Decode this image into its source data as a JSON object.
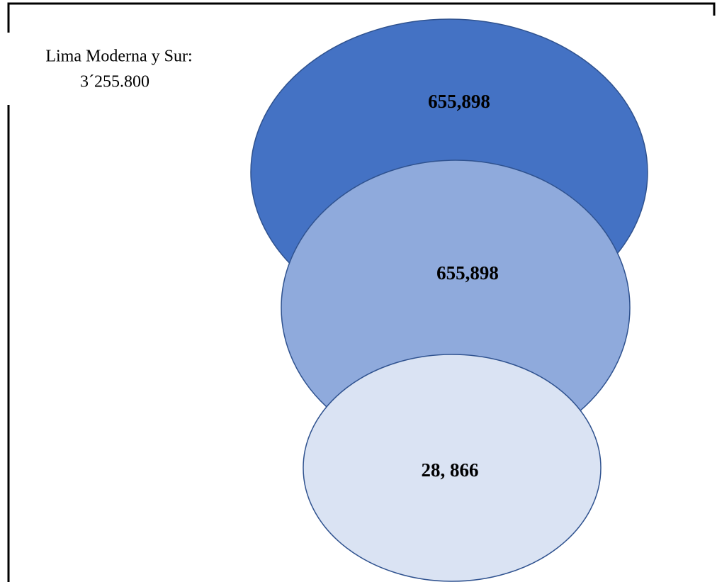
{
  "label": {
    "lines": [
      "Lima Moderna y Sur:",
      "3´255.800"
    ]
  },
  "segments": [
    {
      "text": "655,898"
    },
    {
      "text": "655,898"
    },
    {
      "text": "28, 866"
    }
  ]
}
